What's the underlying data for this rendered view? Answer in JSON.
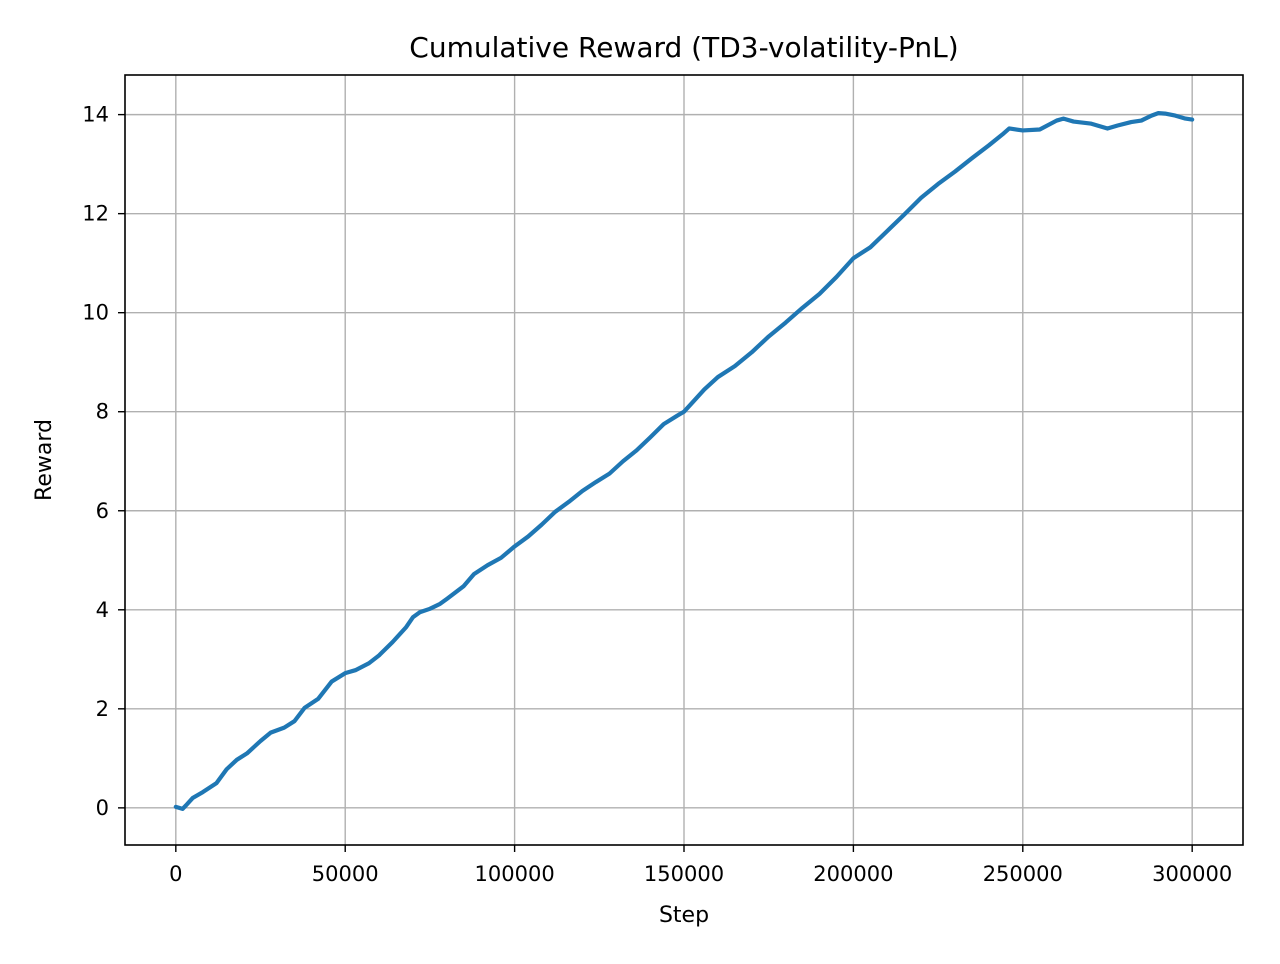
{
  "chart_data": {
    "type": "line",
    "title": "Cumulative Reward (TD3-volatility-PnL)",
    "xlabel": "Step",
    "ylabel": "Reward",
    "xlim": [
      -15000,
      315000
    ],
    "ylim": [
      -0.75,
      14.8
    ],
    "x_ticks": [
      0,
      50000,
      100000,
      150000,
      200000,
      250000,
      300000
    ],
    "y_ticks": [
      0,
      2,
      4,
      6,
      8,
      10,
      12,
      14
    ],
    "grid": true,
    "series": [
      {
        "color": "#1f77b4",
        "x": [
          0,
          1000,
          2000,
          3000,
          5000,
          8000,
          12000,
          15000,
          18000,
          21000,
          25000,
          28000,
          32000,
          35000,
          38000,
          42000,
          46000,
          50000,
          53000,
          57000,
          60000,
          64000,
          68000,
          70000,
          72000,
          75000,
          78000,
          80000,
          85000,
          88000,
          92000,
          96000,
          100000,
          104000,
          108000,
          112000,
          116000,
          120000,
          124000,
          128000,
          132000,
          136000,
          140000,
          144000,
          148000,
          150000,
          152000,
          156000,
          160000,
          165000,
          170000,
          175000,
          180000,
          185000,
          190000,
          195000,
          200000,
          205000,
          210000,
          215000,
          220000,
          225000,
          230000,
          235000,
          240000,
          244000,
          246000,
          250000,
          255000,
          260000,
          262000,
          265000,
          270000,
          275000,
          278000,
          282000,
          285000,
          288000,
          290000,
          292000,
          295000,
          298000,
          300000
        ],
        "y": [
          0.02,
          0.0,
          -0.02,
          0.05,
          0.2,
          0.32,
          0.5,
          0.78,
          0.97,
          1.1,
          1.35,
          1.52,
          1.62,
          1.75,
          2.02,
          2.2,
          2.55,
          2.72,
          2.78,
          2.92,
          3.08,
          3.35,
          3.65,
          3.85,
          3.95,
          4.02,
          4.12,
          4.22,
          4.48,
          4.72,
          4.9,
          5.05,
          5.28,
          5.48,
          5.72,
          5.98,
          6.18,
          6.4,
          6.58,
          6.75,
          7.0,
          7.22,
          7.48,
          7.75,
          7.92,
          8.0,
          8.15,
          8.45,
          8.7,
          8.92,
          9.2,
          9.52,
          9.8,
          10.1,
          10.38,
          10.72,
          11.1,
          11.32,
          11.65,
          11.98,
          12.32,
          12.6,
          12.85,
          13.12,
          13.38,
          13.6,
          13.72,
          13.68,
          13.7,
          13.88,
          13.92,
          13.86,
          13.82,
          13.72,
          13.78,
          13.85,
          13.88,
          13.98,
          14.03,
          14.02,
          13.98,
          13.92,
          13.9
        ]
      }
    ]
  }
}
